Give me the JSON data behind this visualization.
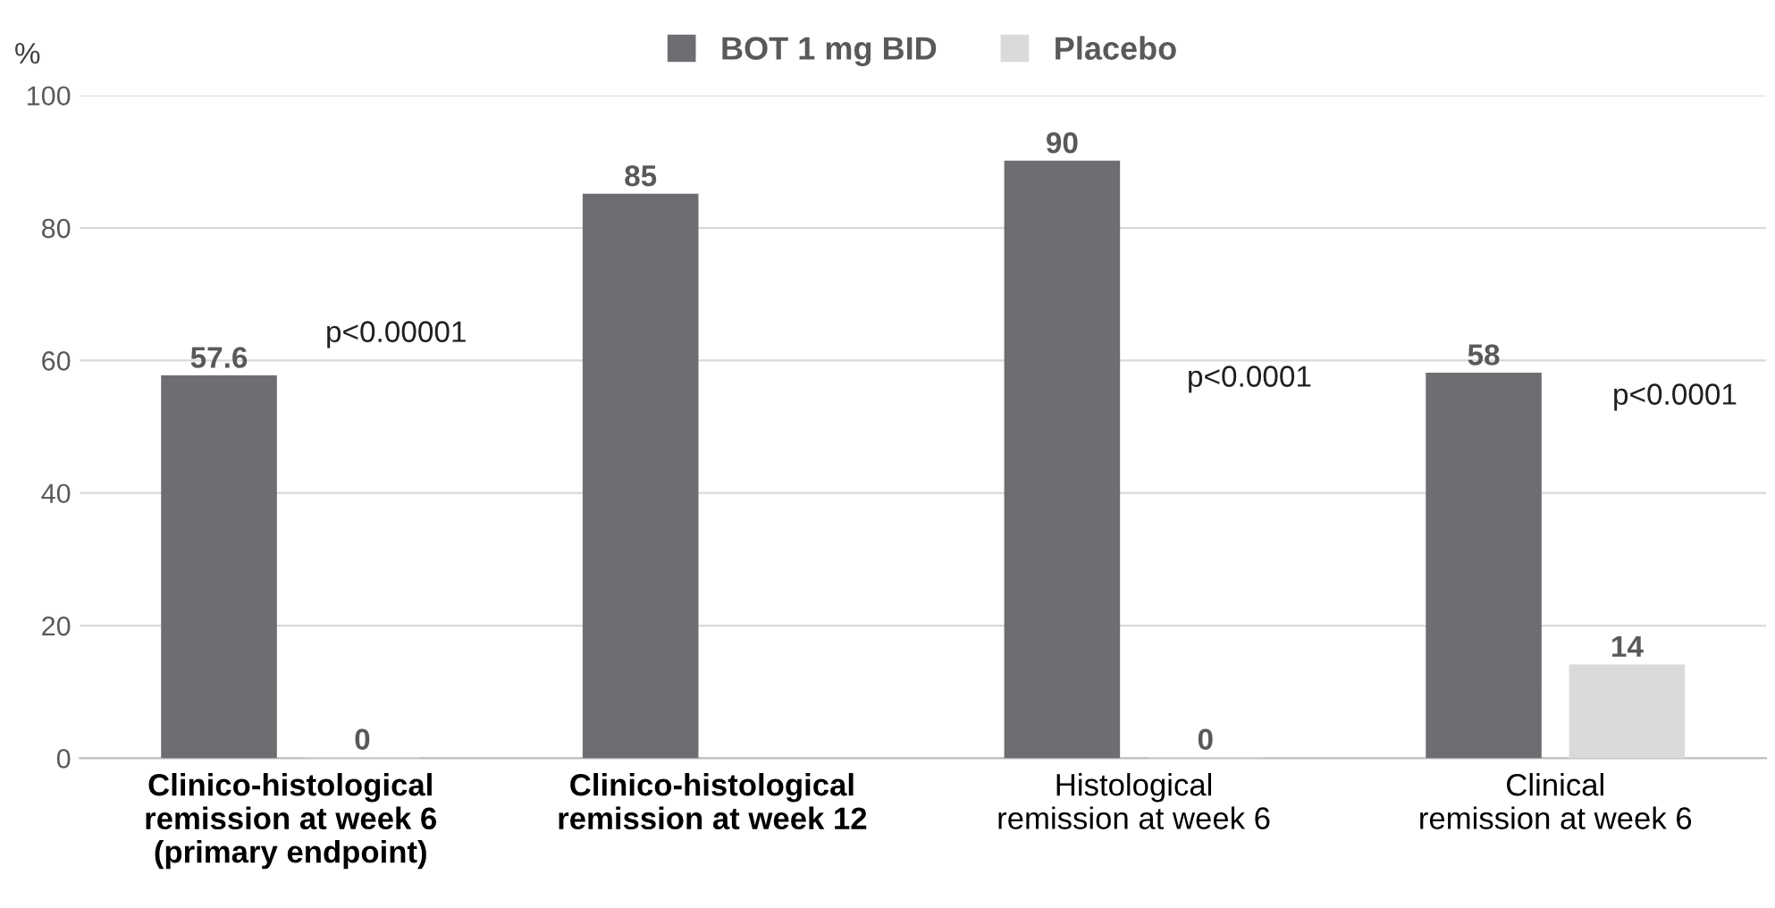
{
  "chart_data": {
    "type": "bar",
    "ylabel": "%",
    "categories": [
      "Clinico-histological\nremission at week 6\n(primary endpoint)",
      "Clinico-histological\nremission at week 12",
      "Histological\nremission at week 6",
      "Clinical\nremission at week 6"
    ],
    "series": [
      {
        "name": "BOT 1 mg BID",
        "color": "#6d6e71",
        "values": [
          57.6,
          85,
          90,
          58
        ],
        "value_labels": [
          "57.6",
          "85",
          "90",
          "58"
        ]
      },
      {
        "name": "Placebo",
        "color": "#d9dadb",
        "values": [
          0,
          null,
          0,
          14
        ],
        "value_labels": [
          "0",
          null,
          "0",
          "14"
        ]
      }
    ],
    "ylim": [
      0,
      100
    ],
    "yticks": [
      0,
      20,
      40,
      60,
      80,
      100
    ],
    "grid": "y",
    "legend": "top",
    "annotations": [
      "p<0.00001",
      "p<0.0001",
      "p<0.0001"
    ]
  }
}
